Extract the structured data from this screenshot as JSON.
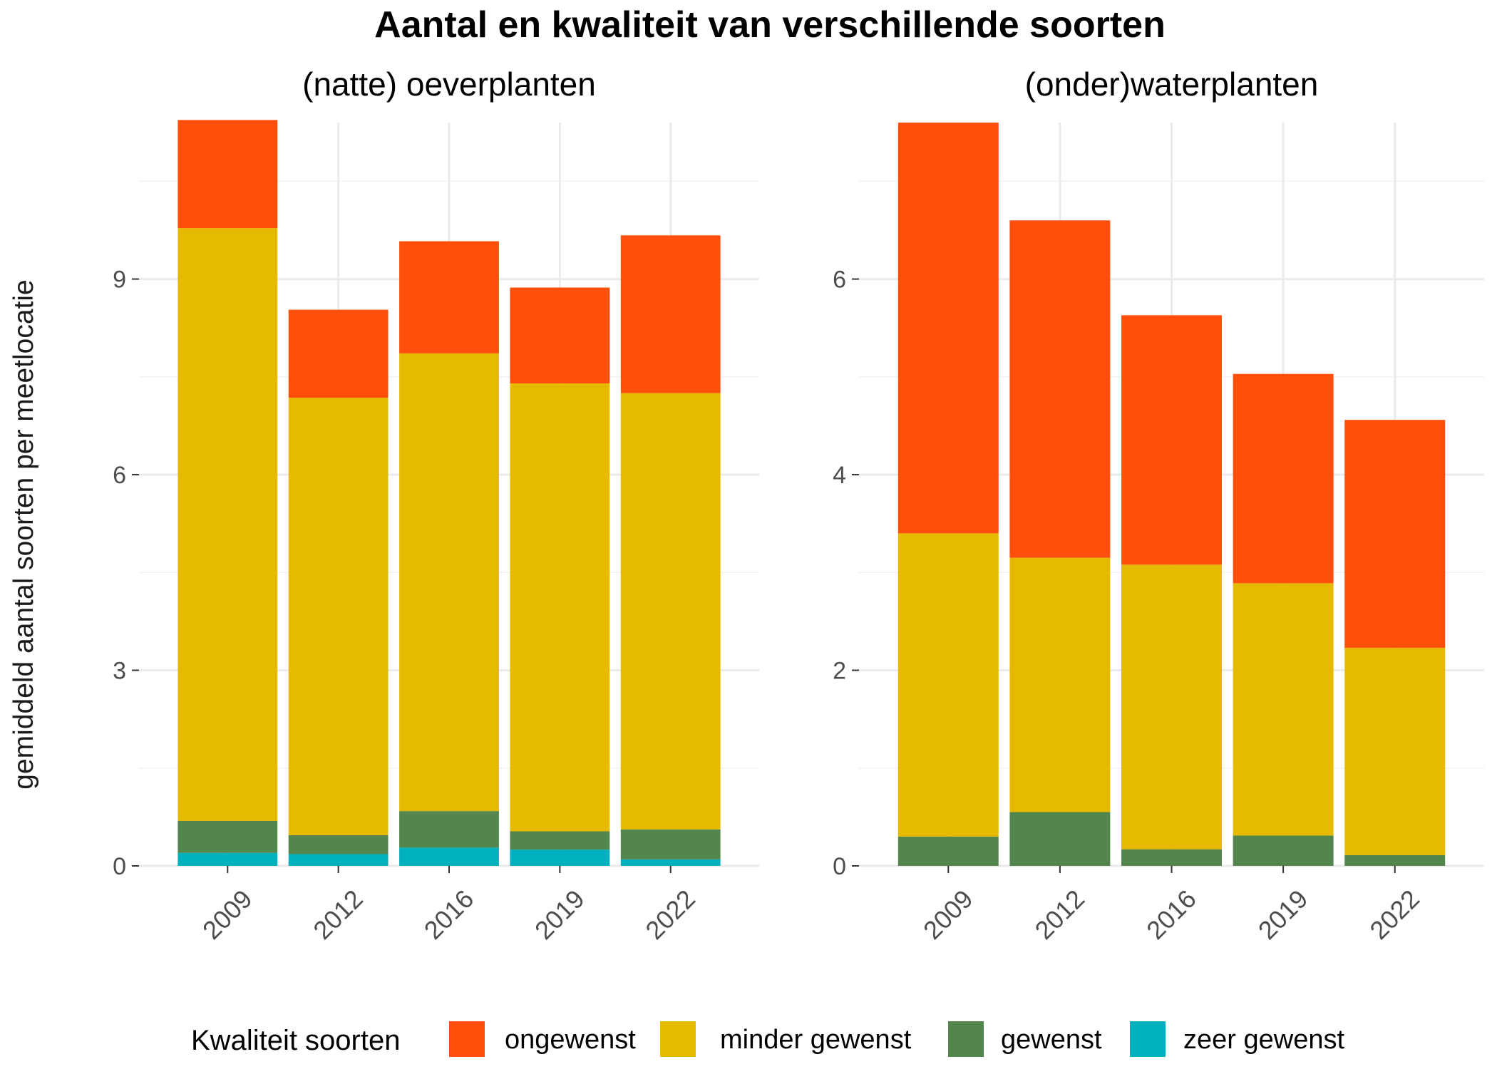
{
  "chart_data": {
    "type": "bar",
    "stacked": true,
    "title": "Aantal en kwaliteit van verschillende soorten",
    "ylabel": "gemiddeld aantal soorten per meetlocatie",
    "categories": [
      "2009",
      "2012",
      "2016",
      "2019",
      "2022"
    ],
    "legend": {
      "title": "Kwaliteit soorten",
      "position": "bottom",
      "items": [
        {
          "label": "ongewenst",
          "color": "#FF4F0A"
        },
        {
          "label": "minder gewenst",
          "color": "#E5BA00"
        },
        {
          "label": "gewenst",
          "color": "#53864D"
        },
        {
          "label": "zeer gewenst",
          "color": "#00B0BF"
        }
      ]
    },
    "panels": [
      {
        "subtitle": "(natte) oeverplanten",
        "ylim": [
          0,
          11.4
        ],
        "yticks": [
          0,
          3,
          6,
          9
        ],
        "series": [
          {
            "name": "zeer gewenst",
            "values": [
              0.2,
              0.18,
              0.28,
              0.25,
              0.1
            ]
          },
          {
            "name": "gewenst",
            "values": [
              0.49,
              0.29,
              0.56,
              0.28,
              0.46
            ]
          },
          {
            "name": "minder gewenst",
            "values": [
              9.09,
              6.71,
              7.02,
              6.87,
              6.69
            ]
          },
          {
            "name": "ongewenst",
            "values": [
              1.66,
              1.35,
              1.72,
              1.47,
              2.42
            ]
          }
        ]
      },
      {
        "subtitle": "(onder)waterplanten",
        "ylim": [
          0,
          7.6
        ],
        "yticks": [
          0,
          2,
          4,
          6
        ],
        "series": [
          {
            "name": "zeer gewenst",
            "values": [
              0,
              0,
              0,
              0,
              0
            ]
          },
          {
            "name": "gewenst",
            "values": [
              0.3,
              0.55,
              0.17,
              0.31,
              0.11
            ]
          },
          {
            "name": "minder gewenst",
            "values": [
              3.1,
              2.6,
              2.91,
              2.58,
              2.12
            ]
          },
          {
            "name": "ongewenst",
            "values": [
              4.2,
              3.45,
              2.55,
              2.14,
              2.33
            ]
          }
        ]
      }
    ]
  }
}
